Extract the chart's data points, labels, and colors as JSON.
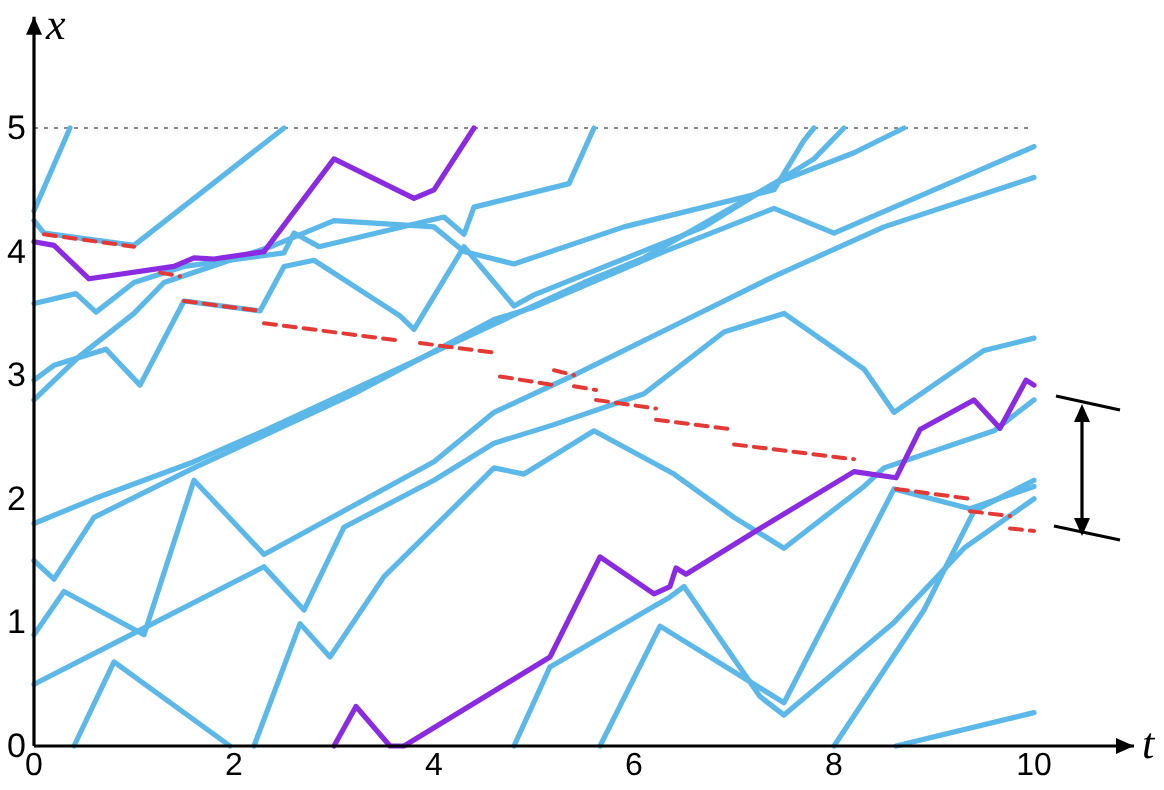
{
  "chart_data": {
    "type": "line",
    "xlabel": "t",
    "ylabel": "x",
    "xlim": [
      0,
      11
    ],
    "ylim": [
      0,
      5.9
    ],
    "xticks": [
      0,
      2,
      4,
      6,
      8,
      10
    ],
    "yticks": [
      0,
      1,
      2,
      3,
      4,
      5
    ],
    "grid": false,
    "marker": "none",
    "ref_lines": [
      {
        "axis": "y",
        "value": 5,
        "color": "#888888",
        "line_style": "dotted"
      }
    ],
    "series": [
      {
        "color": "#5bb8e8",
        "x": [
          0,
          0.36
        ],
        "values": [
          4.33,
          5.0
        ]
      },
      {
        "color": "#5bb8e8",
        "x": [
          0,
          0.1,
          1.0,
          2.5
        ],
        "values": [
          4.25,
          4.15,
          4.05,
          5.0
        ]
      },
      {
        "color": "#5bb8e8",
        "x": [
          0,
          0.42,
          0.62,
          1.0,
          1.5,
          2.5,
          2.6,
          2.85,
          4.1,
          4.3,
          4.4,
          5.35,
          5.6
        ],
        "values": [
          3.58,
          3.66,
          3.51,
          3.75,
          3.88,
          3.99,
          4.15,
          4.04,
          4.28,
          4.14,
          4.36,
          4.55,
          5.0
        ]
      },
      {
        "color": "#5bb8e8",
        "x": [
          0,
          0.2,
          0.72,
          1.06,
          1.5,
          2.26,
          2.5,
          2.8,
          3.66,
          3.8,
          4.3,
          4.8,
          5.0,
          6.7,
          7.3,
          7.8,
          8.1
        ],
        "values": [
          2.96,
          3.08,
          3.21,
          2.92,
          3.6,
          3.52,
          3.88,
          3.93,
          3.48,
          3.37,
          4.04,
          3.56,
          3.65,
          4.2,
          4.5,
          4.75,
          5.0
        ]
      },
      {
        "color": "#5bb8e8",
        "x": [
          0,
          0.45,
          1.0,
          1.3,
          2.4,
          3.0,
          4.0,
          4.3,
          4.8,
          5.9,
          7.4,
          7.7,
          7.8
        ],
        "values": [
          2.8,
          3.15,
          3.5,
          3.75,
          4.05,
          4.25,
          4.2,
          4.0,
          3.9,
          4.2,
          4.5,
          4.9,
          5.0
        ]
      },
      {
        "color": "#5bb8e8",
        "x": [
          0,
          0.6,
          1.6,
          2.3,
          5.5,
          6.1,
          7.4,
          8.2,
          8.7
        ],
        "values": [
          1.8,
          2.0,
          2.3,
          2.55,
          3.75,
          3.95,
          4.55,
          4.8,
          5.0
        ]
      },
      {
        "color": "#5bb8e8",
        "x": [
          0,
          0.2,
          0.6,
          1.6,
          3.2,
          4.6,
          5.0,
          6.3,
          7.4,
          8.0,
          9.0,
          10
        ],
        "values": [
          1.5,
          1.35,
          1.85,
          2.25,
          2.85,
          3.45,
          3.55,
          4.0,
          4.35,
          4.15,
          4.5,
          4.85
        ]
      },
      {
        "color": "#5bb8e8",
        "x": [
          0,
          0.3,
          1.1,
          1.6,
          2.3,
          4.0,
          4.6,
          5.4,
          6.4,
          7.4,
          8.5,
          10
        ],
        "values": [
          0.9,
          1.25,
          0.9,
          2.15,
          1.55,
          2.3,
          2.7,
          3.0,
          3.4,
          3.8,
          4.2,
          4.6
        ]
      },
      {
        "color": "#5bb8e8",
        "x": [
          0,
          0.8,
          2.3,
          2.7,
          3.1,
          4.0,
          4.6,
          5.2,
          6.1,
          6.9,
          7.5,
          8.3,
          8.6,
          9.5,
          10
        ],
        "values": [
          0.5,
          0.83,
          1.45,
          1.1,
          1.77,
          2.15,
          2.45,
          2.6,
          2.85,
          3.35,
          3.5,
          3.05,
          2.7,
          3.2,
          3.3
        ]
      },
      {
        "color": "#5bb8e8",
        "x": [
          0.4,
          0.8,
          1.96
        ],
        "values": [
          0,
          0.68,
          0
        ]
      },
      {
        "color": "#5bb8e8",
        "x": [
          2.2,
          2.66,
          2.96,
          3.5,
          4.6,
          4.9,
          5.6,
          6.4,
          7.0,
          7.5,
          8.3,
          8.5,
          9.6,
          10
        ],
        "values": [
          0,
          0.99,
          0.72,
          1.37,
          2.25,
          2.2,
          2.55,
          2.2,
          1.85,
          1.6,
          2.1,
          2.25,
          2.55,
          2.8
        ]
      },
      {
        "color": "#5bb8e8",
        "x": [
          4.8,
          5.16,
          6.2,
          6.35,
          6.5,
          7.26,
          7.5,
          8.6,
          9.3,
          10
        ],
        "values": [
          0,
          0.64,
          1.13,
          1.2,
          1.29,
          0.4,
          0.25,
          1.0,
          1.6,
          2.0
        ]
      },
      {
        "color": "#5bb8e8",
        "x": [
          5.66,
          6.26,
          7.5,
          8.6,
          9.36,
          10
        ],
        "values": [
          0,
          0.97,
          0.35,
          2.08,
          1.92,
          2.1
        ]
      },
      {
        "color": "#5bb8e8",
        "x": [
          8.0,
          8.9,
          9.4,
          10
        ],
        "values": [
          0,
          1.1,
          1.9,
          2.15
        ]
      },
      {
        "color": "#5bb8e8",
        "x": [
          8.62,
          10
        ],
        "values": [
          0,
          0.27
        ]
      },
      {
        "color": "#8a2be2",
        "x": [
          0,
          0.2,
          0.55,
          1.4,
          1.6,
          1.8,
          2.3,
          3.0,
          3.8,
          4.0,
          4.4,
          null,
          3.0,
          3.22,
          3.56,
          3.7,
          5.16,
          5.66,
          6.2,
          6.36,
          6.42,
          6.52,
          7.26,
          8.2,
          8.62,
          8.86,
          9.4,
          9.66,
          9.92,
          10
        ],
        "values": [
          4.08,
          4.05,
          3.78,
          3.88,
          3.95,
          3.94,
          4.0,
          4.75,
          4.43,
          4.5,
          5.0,
          null,
          0,
          0.32,
          0,
          0,
          0.72,
          1.53,
          1.23,
          1.29,
          1.44,
          1.39,
          1.76,
          2.22,
          2.17,
          2.56,
          2.8,
          2.57,
          2.96,
          2.92
        ]
      },
      {
        "color": "#e53935",
        "line_style": "dashed",
        "x": [
          0.1,
          1.0,
          null,
          1.26,
          1.46,
          null,
          1.5,
          2.26,
          null,
          2.3,
          3.66,
          null,
          3.86,
          4.62,
          null,
          4.66,
          5.2,
          null,
          5.2,
          5.4,
          null,
          5.4,
          5.62,
          null,
          5.62,
          6.22,
          null,
          6.22,
          7.0,
          null,
          7.0,
          8.2,
          null,
          8.62,
          9.36,
          null,
          9.36,
          9.76,
          null,
          9.76,
          10
        ],
        "values": [
          4.14,
          4.04,
          null,
          3.83,
          3.8,
          null,
          3.6,
          3.52,
          null,
          3.42,
          3.28,
          null,
          3.26,
          3.18,
          null,
          2.99,
          2.92,
          null,
          3.04,
          3.0,
          null,
          2.91,
          2.88,
          null,
          2.8,
          2.73,
          null,
          2.64,
          2.56,
          null,
          2.44,
          2.32,
          null,
          2.08,
          2.0,
          null,
          1.9,
          1.86,
          null,
          1.76,
          1.74
        ]
      }
    ]
  }
}
